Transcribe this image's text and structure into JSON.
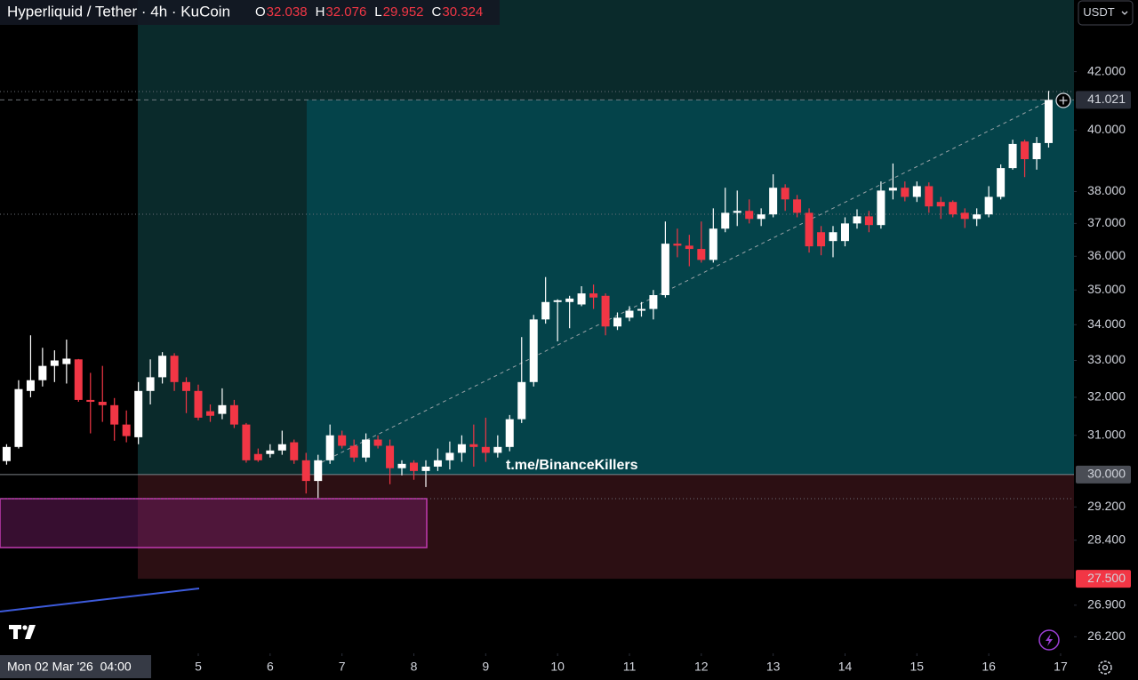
{
  "chart_data": {
    "type": "candlestick",
    "title": "Hyperliquid / Tether · 4h · KuCoin",
    "ohlc": [
      {
        "label": "O",
        "value": 32.038
      },
      {
        "label": "H",
        "value": 32.076
      },
      {
        "label": "L",
        "value": 29.952
      },
      {
        "label": "C",
        "value": 30.324
      }
    ],
    "currency": "USDT",
    "watermark": "t.me/BinanceKillers",
    "crosshair_label": "Mon 02 Mar '26  04:00",
    "log_scale": true,
    "grid": false,
    "up_color": "#ffffff",
    "down_color": "#f23645",
    "xlim": [
      2.241,
      17.186
    ],
    "xticks": [
      5,
      6,
      7,
      8,
      9,
      10,
      11,
      12,
      13,
      14,
      15,
      16,
      17
    ],
    "ylim": [
      25.84,
      44.59
    ],
    "yticks": [
      {
        "value": 42,
        "label": "42.000"
      },
      {
        "value": 40,
        "label": "40.000"
      },
      {
        "value": 38,
        "label": "38.000"
      },
      {
        "value": 37,
        "label": "37.000"
      },
      {
        "value": 36,
        "label": "36.000"
      },
      {
        "value": 35,
        "label": "35.000"
      },
      {
        "value": 34,
        "label": "34.000"
      },
      {
        "value": 33,
        "label": "33.000"
      },
      {
        "value": 32,
        "label": "32.000"
      },
      {
        "value": 31,
        "label": "31.000"
      },
      {
        "value": 29.2,
        "label": "29.200"
      },
      {
        "value": 28.4,
        "label": "28.400"
      },
      {
        "value": 26.9,
        "label": "26.900"
      },
      {
        "value": 26.2,
        "label": "26.200"
      }
    ],
    "levels": [
      {
        "value": 41.021,
        "label": "41.021",
        "color": "#2a2e39"
      },
      {
        "value": 30,
        "label": "30.000",
        "color": "#4a4d55"
      },
      {
        "value": 27.5,
        "label": "27.500",
        "color": "#f23645"
      }
    ],
    "x": [
      2.333,
      2.5,
      2.667,
      2.833,
      3,
      3.167,
      3.333,
      3.5,
      3.667,
      3.833,
      4,
      4.167,
      4.333,
      4.5,
      4.667,
      4.833,
      5,
      5.167,
      5.333,
      5.5,
      5.667,
      5.833,
      6,
      6.167,
      6.333,
      6.5,
      6.667,
      6.833,
      7,
      7.167,
      7.333,
      7.5,
      7.667,
      7.833,
      8,
      8.167,
      8.333,
      8.5,
      8.667,
      8.833,
      9,
      9.167,
      9.333,
      9.5,
      9.667,
      9.833,
      10,
      10.167,
      10.333,
      10.5,
      10.667,
      10.833,
      11,
      11.167,
      11.333,
      11.5,
      11.667,
      11.833,
      12,
      12.167,
      12.333,
      12.5,
      12.667,
      12.833,
      13,
      13.167,
      13.333,
      13.5,
      13.667,
      13.833,
      14,
      14.167,
      14.333,
      14.5,
      14.667,
      14.833,
      15,
      15.167,
      15.333,
      15.5,
      15.667,
      15.833,
      16,
      16.167,
      16.333,
      16.5,
      16.667,
      16.833
    ],
    "open": [
      30.34,
      30.7,
      32.17,
      32.46,
      32.85,
      32.9,
      33.03,
      31.93,
      31.88,
      31.79,
      31.28,
      30.95,
      32.17,
      32.54,
      33.13,
      32.41,
      32.17,
      31.63,
      31.56,
      31.79,
      31.28,
      30.52,
      30.52,
      30.61,
      30.82,
      30.36,
      29.84,
      30.36,
      31.0,
      30.73,
      30.43,
      30.89,
      30.73,
      30.16,
      30.3,
      30.09,
      30.2,
      30.36,
      30.55,
      30.77,
      30.7,
      30.55,
      30.7,
      31.42,
      32.41,
      34.15,
      34.65,
      34.65,
      34.58,
      34.9,
      34.83,
      33.95,
      34.2,
      34.4,
      34.45,
      34.85,
      36.38,
      36.32,
      36.22,
      35.89,
      36.84,
      37.33,
      37.39,
      37.14,
      37.28,
      38.12,
      37.75,
      37.33,
      36.73,
      36.46,
      36.46,
      37.0,
      37.22,
      36.95,
      38.03,
      38.12,
      37.83,
      38.17,
      37.67,
      37.67,
      37.33,
      37.14,
      37.28,
      37.83,
      38.75,
      39.62,
      39.04,
      39.57
    ],
    "high": [
      30.77,
      32.46,
      33.7,
      33.35,
      33.28,
      33.58,
      33.04,
      32.66,
      32.85,
      31.98,
      31.65,
      32.41,
      33.03,
      33.23,
      33.2,
      32.54,
      32.34,
      31.81,
      32.24,
      31.93,
      31.32,
      30.66,
      30.77,
      31.12,
      30.89,
      30.55,
      30.5,
      31.28,
      31.12,
      30.89,
      31.05,
      31.0,
      30.89,
      30.36,
      30.36,
      30.36,
      30.66,
      30.84,
      31.0,
      31.28,
      31.46,
      31.0,
      31.53,
      33.65,
      34.28,
      35.38,
      34.73,
      34.83,
      35.11,
      35.16,
      34.9,
      34.35,
      34.53,
      34.65,
      35.0,
      37.06,
      36.84,
      36.65,
      37.06,
      37.47,
      38.12,
      38.03,
      37.75,
      37.47,
      38.55,
      38.23,
      37.89,
      37.47,
      36.92,
      36.92,
      37.19,
      37.44,
      37.39,
      38.32,
      38.9,
      38.32,
      38.32,
      38.29,
      37.83,
      37.72,
      37.47,
      37.47,
      38.17,
      38.87,
      39.68,
      39.68,
      39.77,
      41.33
    ],
    "low": [
      30.25,
      30.66,
      32.0,
      32.29,
      32.41,
      32.37,
      31.88,
      31.05,
      31.35,
      30.86,
      30.82,
      30.77,
      31.81,
      32.37,
      32.17,
      31.58,
      31.39,
      31.35,
      31.42,
      31.19,
      30.3,
      30.32,
      30.43,
      30.5,
      30.27,
      29.53,
      29.42,
      30.27,
      30.66,
      30.32,
      30.32,
      30.66,
      29.76,
      29.98,
      29.87,
      29.69,
      30.09,
      30.13,
      30.32,
      30.2,
      30.32,
      30.43,
      30.59,
      31.32,
      32.29,
      34.03,
      33.53,
      33.9,
      34.53,
      34.45,
      33.7,
      33.85,
      34.1,
      34.23,
      34.15,
      34.78,
      35.97,
      35.7,
      35.81,
      35.81,
      36.73,
      36.92,
      37.0,
      36.92,
      37.19,
      37.39,
      37.19,
      36.11,
      36.03,
      35.97,
      36.3,
      36.84,
      36.73,
      36.84,
      37.75,
      37.69,
      37.67,
      37.33,
      37.14,
      37.19,
      36.86,
      36.92,
      37.19,
      37.75,
      38.7,
      38.46,
      38.7,
      39.42
    ],
    "close": [
      30.7,
      32.22,
      32.46,
      32.85,
      33.0,
      33.05,
      31.93,
      31.88,
      31.79,
      31.28,
      30.98,
      32.17,
      32.54,
      33.13,
      32.41,
      32.17,
      31.46,
      31.51,
      31.79,
      31.28,
      30.36,
      30.36,
      30.61,
      30.77,
      30.36,
      29.84,
      30.36,
      31.0,
      30.73,
      30.43,
      30.89,
      30.73,
      30.16,
      30.27,
      30.09,
      30.2,
      30.36,
      30.55,
      30.77,
      30.7,
      30.55,
      30.7,
      31.42,
      32.41,
      34.15,
      34.65,
      34.7,
      34.75,
      34.9,
      34.78,
      33.95,
      34.2,
      34.4,
      34.45,
      34.85,
      36.38,
      36.32,
      36.22,
      35.89,
      36.84,
      37.33,
      37.39,
      37.14,
      37.28,
      38.12,
      37.75,
      37.33,
      36.3,
      36.3,
      36.73,
      37.0,
      37.22,
      36.95,
      38.03,
      38.12,
      37.83,
      38.17,
      37.53,
      37.53,
      37.28,
      37.14,
      37.28,
      37.83,
      38.75,
      39.54,
      39.04,
      39.57,
      41.021
    ]
  }
}
